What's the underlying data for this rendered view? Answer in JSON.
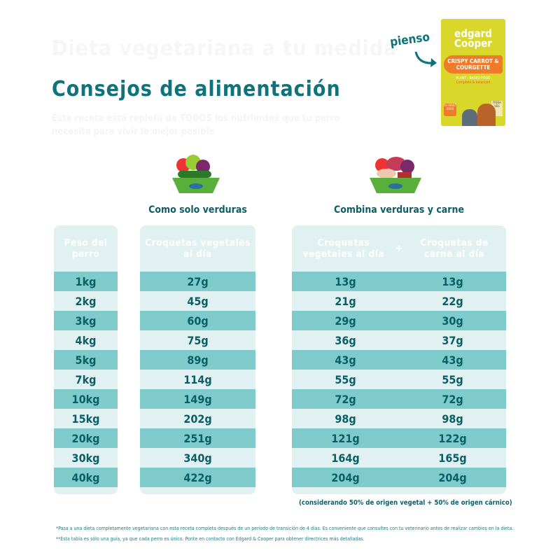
{
  "faded_title": "Dieta vegetariana a tu medida",
  "title": "Consejos de alimentación",
  "faded_subtitle": "Esta receta está repleta de TODOS los nutrientes que tu perro necesita para vivir lo mejor posible",
  "product": {
    "label": "pienso",
    "brand": "edgard Cooper",
    "name": "CRISPY CARROT & COURGETTE",
    "tag": "PLANT - BASED FOOD",
    "sub": "Complete & balanced",
    "badge": "for ADULT DOGS",
    "fresh": "FRESH VEG",
    "colors": {
      "bag": "#d8d72a",
      "carrot": "#ee7a2a"
    }
  },
  "section_veg": "Como solo verduras",
  "section_mix": "Combina verduras y carne",
  "headers": {
    "weight": "Peso del perro",
    "veg_only": "Croquetas vegetales al día",
    "mix_veg": "Croquetas vegetales al día",
    "plus": "+",
    "mix_meat": "Croquetas de carne al día"
  },
  "rows": [
    {
      "weight": "1kg",
      "veg": "27g",
      "mix_veg": "13g",
      "mix_meat": "13g"
    },
    {
      "weight": "2kg",
      "veg": "45g",
      "mix_veg": "21g",
      "mix_meat": "22g"
    },
    {
      "weight": "3kg",
      "veg": "60g",
      "mix_veg": "29g",
      "mix_meat": "30g"
    },
    {
      "weight": "4kg",
      "veg": "75g",
      "mix_veg": "36g",
      "mix_meat": "37g"
    },
    {
      "weight": "5kg",
      "veg": "89g",
      "mix_veg": "43g",
      "mix_meat": "43g"
    },
    {
      "weight": "7kg",
      "veg": "114g",
      "mix_veg": "55g",
      "mix_meat": "55g"
    },
    {
      "weight": "10kg",
      "veg": "149g",
      "mix_veg": "72g",
      "mix_meat": "72g"
    },
    {
      "weight": "15kg",
      "veg": "202g",
      "mix_veg": "98g",
      "mix_meat": "98g"
    },
    {
      "weight": "20kg",
      "veg": "251g",
      "mix_veg": "121g",
      "mix_meat": "122g"
    },
    {
      "weight": "30kg",
      "veg": "340g",
      "mix_veg": "164g",
      "mix_meat": "165g"
    },
    {
      "weight": "40kg",
      "veg": "422g",
      "mix_veg": "204g",
      "mix_meat": "204g"
    }
  ],
  "note": "(considerando 50% de origen vegetal + 50% de origen cárnico)",
  "footnotes": [
    "*Pasa a una dieta completamente vegetariana con esta receta completa después de un período de transición de 4 días. Es conveniente que consultes con tu veterinario antes de realizar cambios en la dieta.",
    "**Esta tabla es sólo una guía, ya que cada perro es único. Ponte en contacto con Edgard & Cooper para obtener directrices más detalladas."
  ],
  "colors": {
    "accent": "#0e737a",
    "row_dark": "#7fcbcb",
    "row_light": "#e1f1f1"
  }
}
